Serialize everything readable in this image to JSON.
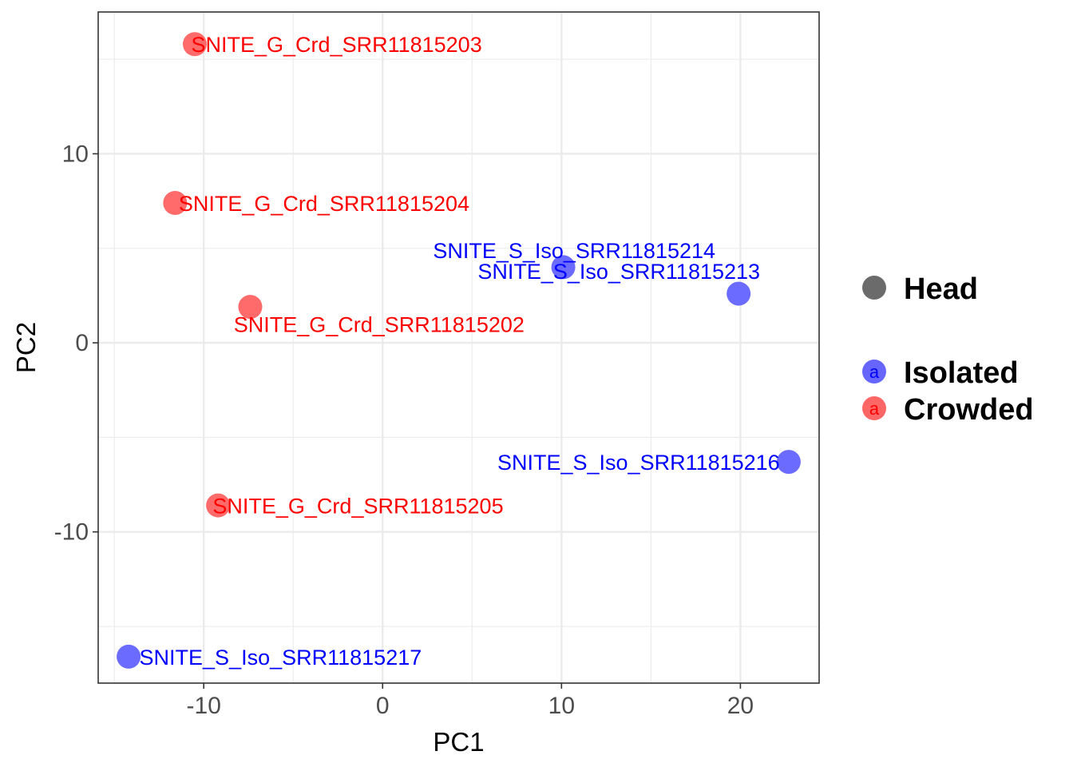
{
  "chart_data": {
    "type": "scatter",
    "xlabel": "PC1",
    "ylabel": "PC2",
    "xlim": [
      -15.9,
      24.4
    ],
    "ylim": [
      -18.0,
      17.5
    ],
    "x_ticks": [
      -10,
      0,
      10,
      20
    ],
    "y_ticks": [
      -10,
      0,
      10
    ],
    "x_minor": [
      -15,
      -5,
      5,
      15
    ],
    "y_minor": [
      -15,
      -5,
      5,
      15
    ],
    "grid": true,
    "legend_position": "right",
    "legend": {
      "shape_entries": [
        {
          "label": "Head",
          "color": "#6b6b6b"
        }
      ],
      "color_entries": [
        {
          "label": "Isolated",
          "color": "#0000ff",
          "key_glyph": "a"
        },
        {
          "label": "Crowded",
          "color": "#ff0000",
          "key_glyph": "a"
        }
      ]
    },
    "series": [
      {
        "name": "Isolated",
        "point_color": "#6b6bff",
        "label_color": "#0000ff",
        "points": [
          {
            "label": "SNITE_S_Iso_SRR11815214",
            "x": 10.1,
            "y": 4.0,
            "anchor": "end",
            "ldx": 8.5,
            "ldy": 0.9
          },
          {
            "label": "SNITE_S_Iso_SRR11815213",
            "x": 19.9,
            "y": 2.6,
            "anchor": "end",
            "ldx": 1.2,
            "ldy": 1.2
          },
          {
            "label": "SNITE_S_Iso_SRR11815216",
            "x": 22.7,
            "y": -6.3,
            "anchor": "end",
            "ldx": -0.5,
            "ldy": 0
          },
          {
            "label": "SNITE_S_Iso_SRR11815217",
            "x": -14.2,
            "y": -16.6,
            "anchor": "start",
            "ldx": 0.6,
            "ldy": 0
          }
        ]
      },
      {
        "name": "Crowded",
        "point_color": "#ff6b6b",
        "label_color": "#ff0000",
        "points": [
          {
            "label": "SNITE_G_Crd_SRR11815203",
            "x": -10.5,
            "y": 15.8,
            "anchor": "start",
            "ldx": -0.2,
            "ldy": 0
          },
          {
            "label": "SNITE_G_Crd_SRR11815204",
            "x": -11.6,
            "y": 7.4,
            "anchor": "start",
            "ldx": 0.2,
            "ldy": 0
          },
          {
            "label": "SNITE_G_Crd_SRR11815202",
            "x": -7.4,
            "y": 1.9,
            "anchor": "middle",
            "ldx": 7.2,
            "ldy": -0.9
          },
          {
            "label": "SNITE_G_Crd_SRR11815205",
            "x": -9.2,
            "y": -8.6,
            "anchor": "start",
            "ldx": -0.3,
            "ldy": 0
          }
        ]
      }
    ]
  }
}
